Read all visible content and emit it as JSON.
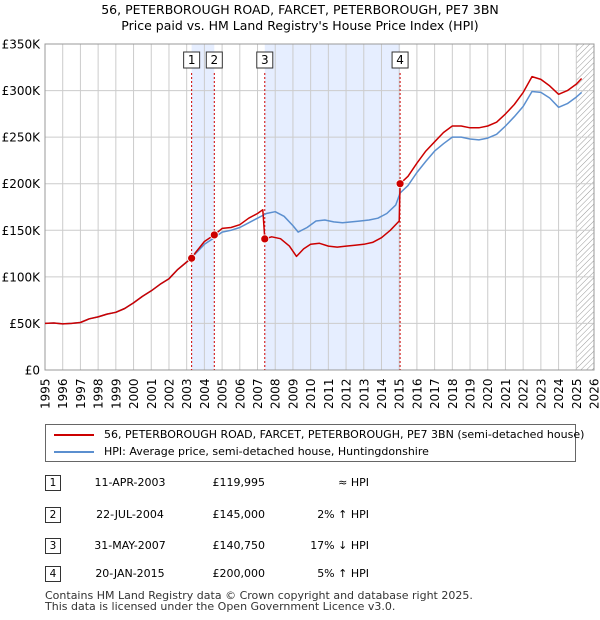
{
  "title": {
    "line1": "56, PETERBOROUGH ROAD, FARCET, PETERBOROUGH, PE7 3BN",
    "line2": "Price paid vs. HM Land Registry's House Price Index (HPI)"
  },
  "colors": {
    "red": "#cc0000",
    "blue": "#5b8fcf",
    "shade": "#e6eeff",
    "grid": "#cccccc",
    "marker_line": "#cc0000"
  },
  "chart_data": {
    "type": "line",
    "title": "Price paid vs. HM Land Registry's House Price Index (HPI)",
    "xlabel": "",
    "ylabel": "",
    "xlim": [
      1995,
      2026
    ],
    "ylim": [
      0,
      350000
    ],
    "y_ticks": [
      0,
      50000,
      100000,
      150000,
      200000,
      250000,
      300000,
      350000
    ],
    "y_tick_labels": [
      "£0",
      "£50K",
      "£100K",
      "£150K",
      "£200K",
      "£250K",
      "£300K",
      "£350K"
    ],
    "x_ticks": [
      1995,
      1996,
      1997,
      1998,
      1999,
      2000,
      2001,
      2002,
      2003,
      2004,
      2005,
      2006,
      2007,
      2008,
      2009,
      2010,
      2011,
      2012,
      2013,
      2014,
      2015,
      2016,
      2017,
      2018,
      2019,
      2020,
      2021,
      2022,
      2023,
      2024,
      2025,
      2026
    ],
    "x_tick_labels": [
      "1995",
      "1996",
      "1997",
      "1998",
      "1999",
      "2000",
      "2001",
      "2002",
      "2003",
      "2004",
      "2005",
      "2006",
      "2007",
      "2008",
      "2009",
      "2010",
      "2011",
      "2012",
      "2013",
      "2014",
      "2015",
      "2016",
      "2017",
      "2018",
      "2019",
      "2020",
      "2021",
      "2022",
      "2023",
      "2024",
      "2025",
      "2026"
    ],
    "shaded_ranges": [
      [
        2003.28,
        2004.56
      ],
      [
        2007.41,
        2015.05
      ]
    ],
    "hatched_from": 2025.0,
    "series": [
      {
        "name": "56, PETERBOROUGH ROAD, FARCET, PETERBOROUGH, PE7 3BN (semi-detached house)",
        "color": "#cc0000",
        "points": [
          [
            1995.0,
            50000
          ],
          [
            1995.5,
            50500
          ],
          [
            1996.0,
            49500
          ],
          [
            1996.5,
            50000
          ],
          [
            1997.0,
            51000
          ],
          [
            1997.5,
            55000
          ],
          [
            1998.0,
            57000
          ],
          [
            1998.5,
            60000
          ],
          [
            1999.0,
            62000
          ],
          [
            1999.5,
            66000
          ],
          [
            2000.0,
            72000
          ],
          [
            2000.5,
            79000
          ],
          [
            2001.0,
            85000
          ],
          [
            2001.5,
            92000
          ],
          [
            2002.0,
            98000
          ],
          [
            2002.5,
            108000
          ],
          [
            2003.0,
            116000
          ],
          [
            2003.28,
            119995
          ],
          [
            2003.5,
            126000
          ],
          [
            2004.0,
            138000
          ],
          [
            2004.56,
            145000
          ],
          [
            2005.0,
            152000
          ],
          [
            2005.5,
            153000
          ],
          [
            2006.0,
            156000
          ],
          [
            2006.5,
            163000
          ],
          [
            2007.0,
            168000
          ],
          [
            2007.3,
            172000
          ],
          [
            2007.41,
            140750
          ],
          [
            2007.8,
            143000
          ],
          [
            2008.3,
            141000
          ],
          [
            2008.8,
            133000
          ],
          [
            2009.2,
            122000
          ],
          [
            2009.6,
            130000
          ],
          [
            2010.0,
            135000
          ],
          [
            2010.5,
            136000
          ],
          [
            2011.0,
            133000
          ],
          [
            2011.5,
            132000
          ],
          [
            2012.0,
            133000
          ],
          [
            2012.5,
            134000
          ],
          [
            2013.0,
            135000
          ],
          [
            2013.5,
            137000
          ],
          [
            2014.0,
            142000
          ],
          [
            2014.5,
            150000
          ],
          [
            2015.0,
            160000
          ],
          [
            2015.05,
            200000
          ],
          [
            2015.5,
            208000
          ],
          [
            2016.0,
            222000
          ],
          [
            2016.5,
            235000
          ],
          [
            2017.0,
            245000
          ],
          [
            2017.5,
            255000
          ],
          [
            2018.0,
            262000
          ],
          [
            2018.5,
            262000
          ],
          [
            2019.0,
            260000
          ],
          [
            2019.5,
            260000
          ],
          [
            2020.0,
            262000
          ],
          [
            2020.5,
            266000
          ],
          [
            2021.0,
            275000
          ],
          [
            2021.5,
            285000
          ],
          [
            2022.0,
            298000
          ],
          [
            2022.5,
            315000
          ],
          [
            2023.0,
            312000
          ],
          [
            2023.5,
            305000
          ],
          [
            2024.0,
            296000
          ],
          [
            2024.5,
            300000
          ],
          [
            2025.0,
            307000
          ],
          [
            2025.3,
            313000
          ]
        ]
      },
      {
        "name": "HPI: Average price, semi-detached house, Huntingdonshire",
        "color": "#5b8fcf",
        "points": [
          [
            1995.0,
            50000
          ],
          [
            1995.5,
            50500
          ],
          [
            1996.0,
            49500
          ],
          [
            1996.5,
            50000
          ],
          [
            1997.0,
            51000
          ],
          [
            1997.5,
            55000
          ],
          [
            1998.0,
            57000
          ],
          [
            1998.5,
            60000
          ],
          [
            1999.0,
            62000
          ],
          [
            1999.5,
            66000
          ],
          [
            2000.0,
            72000
          ],
          [
            2000.5,
            79000
          ],
          [
            2001.0,
            85000
          ],
          [
            2001.5,
            92000
          ],
          [
            2002.0,
            98000
          ],
          [
            2002.5,
            108000
          ],
          [
            2003.0,
            116000
          ],
          [
            2003.28,
            120000
          ],
          [
            2003.5,
            125000
          ],
          [
            2004.0,
            135000
          ],
          [
            2004.56,
            142000
          ],
          [
            2005.0,
            148000
          ],
          [
            2005.5,
            150000
          ],
          [
            2006.0,
            153000
          ],
          [
            2006.5,
            158000
          ],
          [
            2007.0,
            163000
          ],
          [
            2007.5,
            168000
          ],
          [
            2008.0,
            170000
          ],
          [
            2008.5,
            165000
          ],
          [
            2009.0,
            155000
          ],
          [
            2009.3,
            148000
          ],
          [
            2009.8,
            153000
          ],
          [
            2010.3,
            160000
          ],
          [
            2010.8,
            161000
          ],
          [
            2011.3,
            159000
          ],
          [
            2011.8,
            158000
          ],
          [
            2012.3,
            159000
          ],
          [
            2012.8,
            160000
          ],
          [
            2013.3,
            161000
          ],
          [
            2013.8,
            163000
          ],
          [
            2014.3,
            168000
          ],
          [
            2014.8,
            177000
          ],
          [
            2015.05,
            190000
          ],
          [
            2015.5,
            198000
          ],
          [
            2016.0,
            212000
          ],
          [
            2016.5,
            224000
          ],
          [
            2017.0,
            235000
          ],
          [
            2017.5,
            243000
          ],
          [
            2018.0,
            250000
          ],
          [
            2018.5,
            250000
          ],
          [
            2019.0,
            248000
          ],
          [
            2019.5,
            247000
          ],
          [
            2020.0,
            249000
          ],
          [
            2020.5,
            253000
          ],
          [
            2021.0,
            262000
          ],
          [
            2021.5,
            272000
          ],
          [
            2022.0,
            283000
          ],
          [
            2022.5,
            299000
          ],
          [
            2023.0,
            298000
          ],
          [
            2023.5,
            292000
          ],
          [
            2024.0,
            282000
          ],
          [
            2024.5,
            286000
          ],
          [
            2025.0,
            293000
          ],
          [
            2025.3,
            298000
          ]
        ]
      }
    ],
    "sales": [
      {
        "num": "1",
        "x": 2003.28,
        "y": 119995
      },
      {
        "num": "2",
        "x": 2004.56,
        "y": 145000
      },
      {
        "num": "3",
        "x": 2007.41,
        "y": 140750
      },
      {
        "num": "4",
        "x": 2015.05,
        "y": 200000
      }
    ]
  },
  "legend": {
    "item1": "56, PETERBOROUGH ROAD, FARCET, PETERBOROUGH, PE7 3BN (semi-detached house)",
    "item2": "HPI: Average price, semi-detached house, Huntingdonshire"
  },
  "transactions": [
    {
      "num": "1",
      "date": "11-APR-2003",
      "price": "£119,995",
      "hpi": "≈ HPI"
    },
    {
      "num": "2",
      "date": "22-JUL-2004",
      "price": "£145,000",
      "hpi": "2% ↑ HPI"
    },
    {
      "num": "3",
      "date": "31-MAY-2007",
      "price": "£140,750",
      "hpi": "17% ↓ HPI"
    },
    {
      "num": "4",
      "date": "20-JAN-2015",
      "price": "£200,000",
      "hpi": "5% ↑ HPI"
    }
  ],
  "footer": {
    "line1": "Contains HM Land Registry data © Crown copyright and database right 2025.",
    "line2": "This data is licensed under the Open Government Licence v3.0."
  }
}
